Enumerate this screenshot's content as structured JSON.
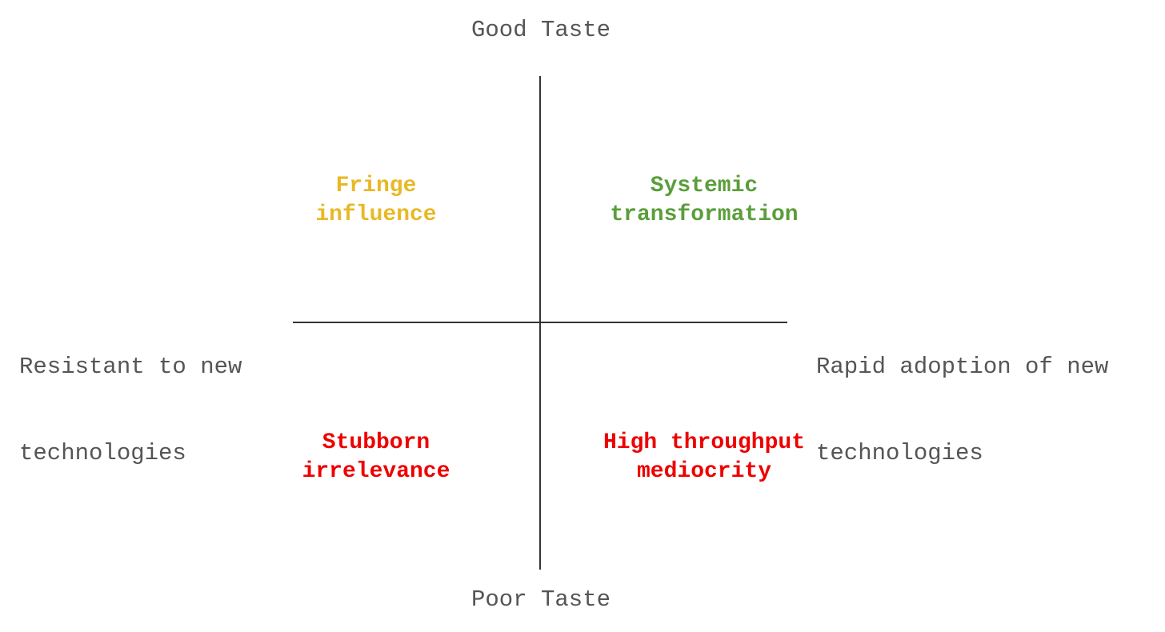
{
  "axes": {
    "top": "Good Taste",
    "bottom": "Poor Taste",
    "left": [
      "Resistant to new",
      "technologies"
    ],
    "right": [
      "Rapid adoption of new",
      "technologies"
    ]
  },
  "quadrants": {
    "top_left": {
      "lines": [
        "Fringe",
        "influence"
      ],
      "color": "#e8b825"
    },
    "top_right": {
      "lines": [
        "Systemic",
        "transformation"
      ],
      "color": "#5a9e3a"
    },
    "bottom_left": {
      "lines": [
        "Stubborn",
        "irrelevance"
      ],
      "color": "#ee0000"
    },
    "bottom_right": {
      "lines": [
        "High throughput",
        "mediocrity"
      ],
      "color": "#ee0000"
    }
  }
}
